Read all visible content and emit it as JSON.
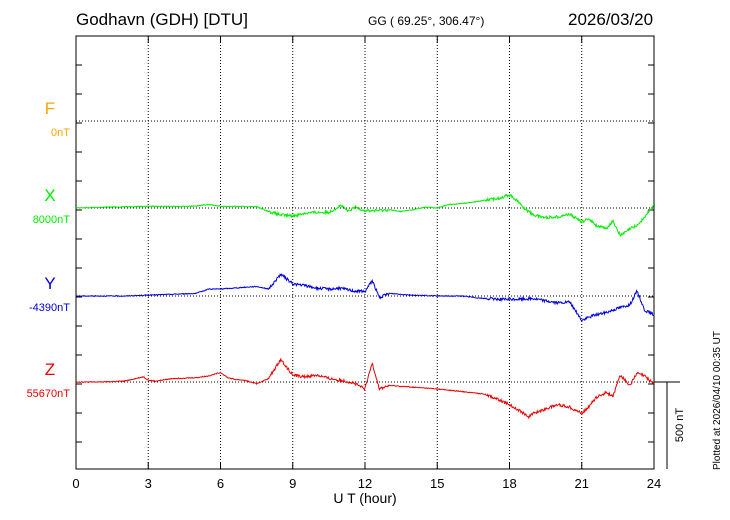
{
  "header": {
    "station": "Godhavn (GDH)  [DTU]",
    "coords": "GG ( 69.25°, 306.47°)",
    "date": "2026/03/20"
  },
  "footer": {
    "plotted": "Plotted at 2026/04/10 00:35 UT"
  },
  "chart_data": {
    "type": "line",
    "title": "Godhavn (GDH)  [DTU]",
    "xlabel": "U T (hour)",
    "ylabel": "",
    "xlim": [
      0,
      24
    ],
    "xticks": [
      0,
      3,
      6,
      9,
      12,
      15,
      18,
      21,
      24
    ],
    "grid": true,
    "scale_bar": {
      "label": "500 nT",
      "value": 500
    },
    "series": [
      {
        "name": "F",
        "baseline_label": "0nT",
        "color": "#f5a800",
        "unit": "nT",
        "x": [],
        "values": []
      },
      {
        "name": "X",
        "baseline_label": "8000nT",
        "color": "#00ee00",
        "unit": "nT",
        "x": [
          0,
          1,
          2,
          3,
          4,
          5,
          5.5,
          6,
          7,
          7.5,
          8,
          8.5,
          9,
          9.5,
          10,
          10.5,
          11,
          11.3,
          11.6,
          12,
          12.5,
          13,
          13.5,
          14,
          14.5,
          15,
          15.5,
          16,
          16.5,
          17,
          17.5,
          18,
          18.3,
          18.6,
          19,
          19.5,
          20,
          20.5,
          21,
          21.3,
          21.6,
          22,
          22.3,
          22.6,
          23,
          23.3,
          23.6,
          24
        ],
        "values": [
          0,
          4,
          7,
          10,
          8,
          12,
          20,
          10,
          8,
          8,
          -20,
          -40,
          -45,
          -30,
          -25,
          -25,
          15,
          -20,
          5,
          -15,
          -15,
          -10,
          -20,
          -10,
          5,
          0,
          20,
          25,
          35,
          45,
          55,
          75,
          45,
          0,
          -40,
          -55,
          -50,
          -35,
          -80,
          -60,
          -100,
          -120,
          -75,
          -160,
          -120,
          -100,
          -55,
          20
        ]
      },
      {
        "name": "Y",
        "baseline_label": "-4390nT",
        "color": "#0000dd",
        "unit": "nT",
        "x": [
          0,
          1,
          2,
          3,
          4,
          5,
          5.5,
          6,
          7,
          7.5,
          8,
          8.5,
          9,
          9.5,
          10,
          10.5,
          11,
          11.5,
          12,
          12.3,
          12.6,
          13,
          14,
          15,
          16,
          17,
          18,
          19,
          20,
          20.5,
          21,
          21.5,
          22,
          22.5,
          23,
          23.3,
          23.6,
          24
        ],
        "values": [
          0,
          0,
          0,
          5,
          10,
          15,
          40,
          40,
          50,
          55,
          40,
          125,
          70,
          60,
          45,
          40,
          45,
          30,
          25,
          90,
          -10,
          15,
          5,
          0,
          0,
          -15,
          -20,
          -15,
          -40,
          -35,
          -140,
          -110,
          -95,
          -70,
          -50,
          30,
          -80,
          -110
        ]
      },
      {
        "name": "Z",
        "baseline_label": "55670nT",
        "color": "#ee0000",
        "unit": "nT",
        "x": [
          0,
          1,
          2,
          2.8,
          3,
          3.3,
          4,
          5,
          5.5,
          6,
          6.3,
          6.6,
          7,
          7.5,
          8,
          8.5,
          9,
          9.5,
          10,
          10.5,
          11,
          11.5,
          12,
          12.3,
          12.6,
          13,
          14,
          15,
          16,
          17,
          17.5,
          18,
          18.5,
          18.8,
          19,
          19.5,
          20,
          20.5,
          21,
          21.3,
          21.6,
          22,
          22.3,
          22.6,
          23,
          23.3,
          23.6,
          24
        ],
        "values": [
          0,
          0,
          5,
          30,
          10,
          5,
          20,
          25,
          35,
          55,
          25,
          15,
          10,
          -10,
          20,
          130,
          40,
          30,
          40,
          20,
          10,
          -5,
          -40,
          110,
          -40,
          -20,
          -30,
          -40,
          -55,
          -70,
          -100,
          -130,
          -170,
          -200,
          -180,
          -155,
          -130,
          -145,
          -180,
          -140,
          -90,
          -60,
          -80,
          40,
          -20,
          50,
          35,
          -10
        ]
      }
    ]
  }
}
